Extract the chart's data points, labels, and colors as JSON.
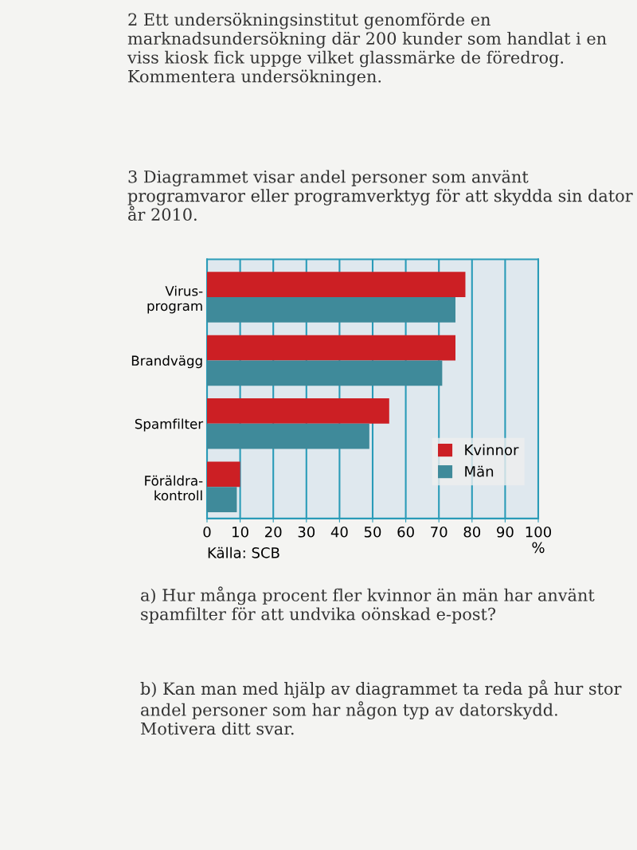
{
  "chart_data": {
    "type": "bar",
    "orientation": "horizontal",
    "title": "3 Diagrammet visar andel personer som använt programvaror eller programverktyg för att skydda sin dator år 2010.",
    "categories": [
      "Virus-\nprogram",
      "Brandvägg",
      "Spamfilter",
      "Föräldra-\nkontroll"
    ],
    "series": [
      {
        "name": "Kvinnor",
        "color": "#cc1f24",
        "values": [
          78,
          75,
          55,
          10
        ]
      },
      {
        "name": "Män",
        "color": "#3f8a9a",
        "values": [
          75,
          71,
          49,
          9
        ]
      }
    ],
    "xlim": [
      0,
      100
    ],
    "xticks": [
      0,
      10,
      20,
      30,
      40,
      50,
      60,
      70,
      80,
      90,
      100
    ],
    "xlabel": "%",
    "grid": "x",
    "legend": "lower right",
    "annotations": [
      "2 Ett undersökningsinstitut genomförde en marknadsundersökning där 200 kunder som handlat i en viss kiosk fick uppge vilket glassmärke de föredrog. Kommentera undersökningen.",
      "Källa: SCB",
      "a) Hur många procent fler kvinnor än män har använt spamfilter för att undvika oönskad e-post?",
      "b) Kan man med hjälp av diagrammet ta reda på hur stor andel personer som har någon typ av datorskydd. Motivera ditt svar."
    ]
  }
}
